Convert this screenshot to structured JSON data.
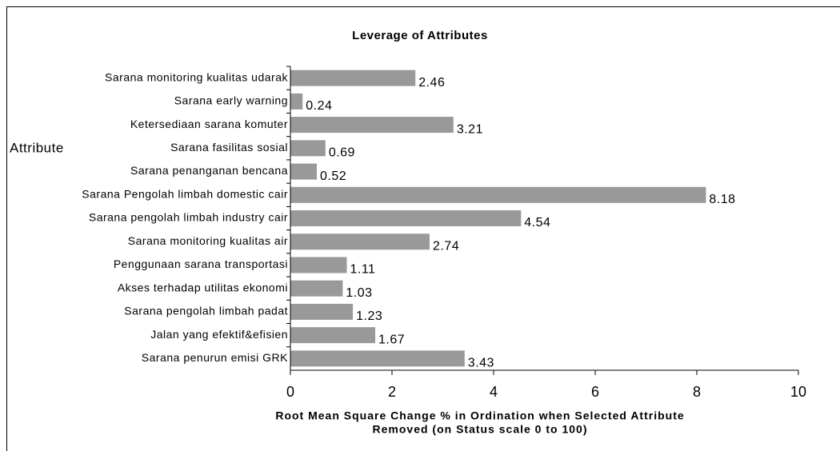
{
  "chart_data": {
    "type": "hbar",
    "title": "Leverage of Attributes",
    "ylabel": "Attribute",
    "xlabel": [
      "Root Mean Square Change % in Ordination when Selected Attribute",
      "Removed (on Status scale 0 to 100)"
    ],
    "categories": [
      "Sarana monitoring kualitas udarak",
      "Sarana early warning",
      "Ketersediaan sarana komuter",
      "Sarana fasilitas sosial",
      "Sarana penanganan bencana",
      "Sarana Pengolah limbah domestic cair",
      "Sarana pengolah limbah industry cair",
      "Sarana monitoring kualitas air",
      "Penggunaan sarana transportasi",
      "Akses terhadap utilitas ekonomi",
      "Sarana pengolah limbah padat",
      "Jalan yang efektif&efisien",
      "Sarana penurun emisi GRK"
    ],
    "values": [
      2.46,
      0.24,
      3.21,
      0.69,
      0.52,
      8.18,
      4.54,
      2.74,
      1.11,
      1.03,
      1.23,
      1.67,
      3.43
    ],
    "color": "#999999",
    "xlim": [
      0,
      10
    ],
    "xticks": [
      0,
      2,
      4,
      6,
      8,
      10
    ],
    "grid": false
  }
}
